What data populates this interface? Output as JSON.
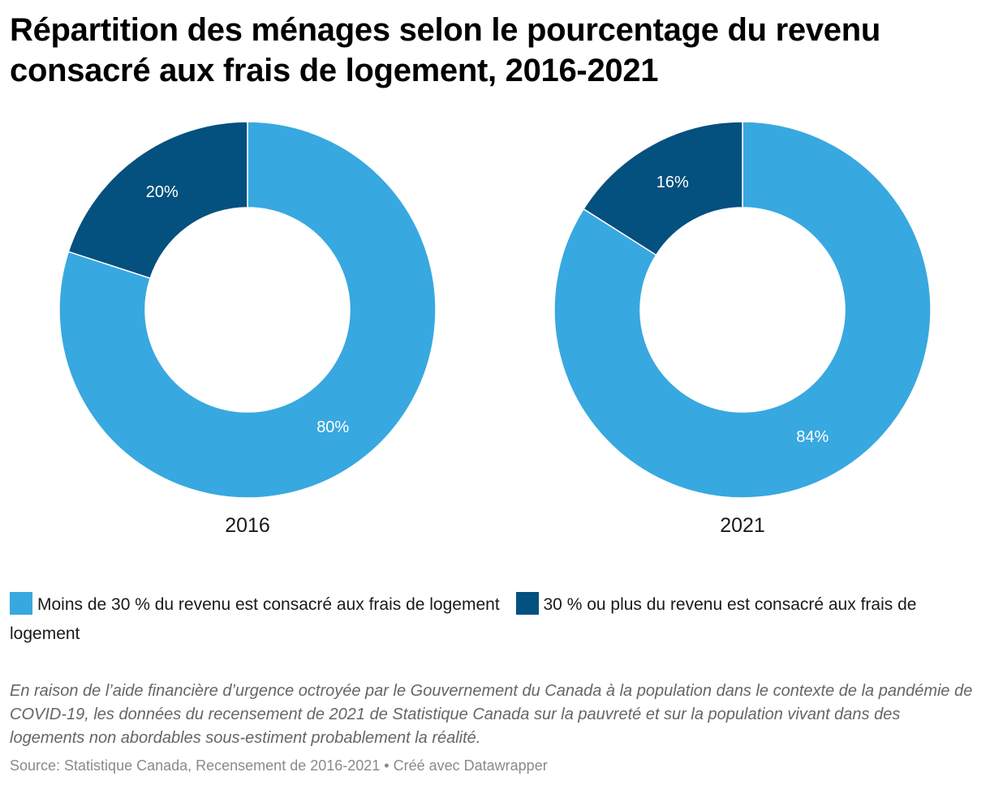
{
  "title": "Répartition des ménages selon le pourcentage du revenu consacré aux frais de logement, 2016-2021",
  "colors": {
    "light": "#38a8e0",
    "dark": "#04507f",
    "label_text": "#ffffff"
  },
  "legend": [
    {
      "label": "Moins de 30 % du revenu est consacré aux frais de logement",
      "color": "#38a8e0"
    },
    {
      "label": "30 % ou plus du revenu est consacré aux frais de logement",
      "color": "#04507f"
    }
  ],
  "chart_data": [
    {
      "type": "pie",
      "title": "2016",
      "categories": [
        "Moins de 30 % du revenu est consacré aux frais de logement",
        "30 % ou plus du revenu est consacré aux frais de logement"
      ],
      "values": [
        80,
        20
      ],
      "labels": [
        "80%",
        "20%"
      ]
    },
    {
      "type": "pie",
      "title": "2021",
      "categories": [
        "Moins de 30 % du revenu est consacré aux frais de logement",
        "30 % ou plus du revenu est consacré aux frais de logement"
      ],
      "values": [
        84,
        16
      ],
      "labels": [
        "84%",
        "16%"
      ]
    }
  ],
  "notes": "En raison de l’aide financière d’urgence octroyée par le Gouvernement du Canada à la population dans le contexte de la pandémie de COVID-19, les données du recensement de 2021 de Statistique Canada sur la pauvreté et sur la population vivant dans des logements non abordables sous-estiment probablement la réalité.",
  "source": "Source: Statistique Canada, Recensement de 2016-2021 • Créé avec Datawrapper"
}
